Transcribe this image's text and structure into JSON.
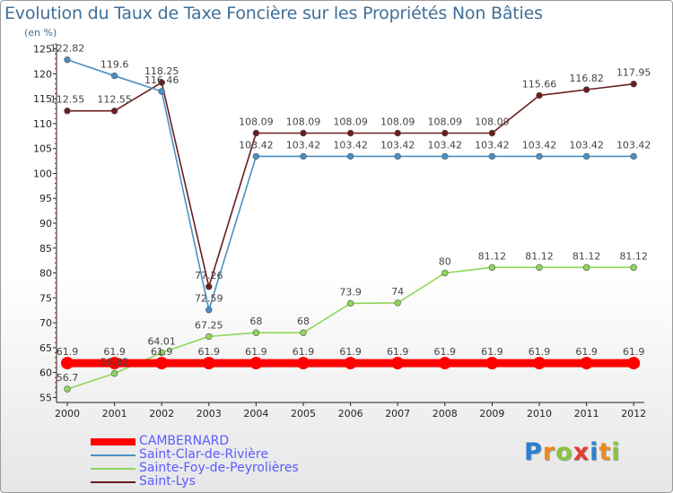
{
  "chart_data": {
    "type": "line",
    "title": "Evolution du Taux de Taxe Foncière sur les Propriétés Non Bâties",
    "subtitle": "(en %)",
    "x": [
      "2000",
      "2001",
      "2002",
      "2003",
      "2004",
      "2005",
      "2006",
      "2007",
      "2008",
      "2009",
      "2010",
      "2011",
      "2012"
    ],
    "ylim": [
      54,
      126
    ],
    "yticks": [
      55,
      60,
      65,
      70,
      75,
      80,
      85,
      90,
      95,
      100,
      105,
      110,
      115,
      120,
      125
    ],
    "series": [
      {
        "name": "CAMBERNARD",
        "color": "#ff0000",
        "values": [
          61.9,
          61.9,
          61.9,
          61.9,
          61.9,
          61.9,
          61.9,
          61.9,
          61.9,
          61.9,
          61.9,
          61.9,
          61.9
        ],
        "labels": [
          "61.9",
          "61.9",
          "61.9",
          "61.9",
          "61.9",
          "61.9",
          "61.9",
          "61.9",
          "61.9",
          "61.9",
          "61.9",
          "61.9",
          "61.9"
        ]
      },
      {
        "name": "Saint-Clar-de-Rivière",
        "color": "#4a90c6",
        "values": [
          122.82,
          119.6,
          116.46,
          72.59,
          103.42,
          103.42,
          103.42,
          103.42,
          103.42,
          103.42,
          103.42,
          103.42,
          103.42
        ],
        "labels": [
          "122.82",
          "119.6",
          "116.46",
          "72.59",
          "103.42",
          "103.42",
          "103.42",
          "103.42",
          "103.42",
          "103.42",
          "103.42",
          "103.42",
          "103.42"
        ]
      },
      {
        "name": "Sainte-Foy-de-Peyrolières",
        "color": "#8ed65a",
        "values": [
          56.7,
          59.82,
          64.01,
          67.25,
          68,
          68,
          73.9,
          74,
          80,
          81.12,
          81.12,
          81.12,
          81.12
        ],
        "labels": [
          "56.7",
          "59.82",
          "64.01",
          "67.25",
          "68",
          "68",
          "73.9",
          "74",
          "80",
          "81.12",
          "81.12",
          "81.12",
          "81.12"
        ]
      },
      {
        "name": "Saint-Lys",
        "color": "#6b1d1d",
        "values": [
          112.55,
          112.55,
          118.25,
          77.26,
          108.09,
          108.09,
          108.09,
          108.09,
          108.09,
          108.09,
          115.66,
          116.82,
          117.95
        ],
        "labels": [
          "112.55",
          "112.55",
          "118.25",
          "77.26",
          "108.09",
          "108.09",
          "108.09",
          "108.09",
          "108.09",
          "108.09",
          "115.66",
          "116.82",
          "117.95"
        ]
      }
    ],
    "legend_position": "bottom-left",
    "grid": false
  },
  "brand": {
    "letters": [
      "P",
      "r",
      "o",
      "x",
      "i",
      "t",
      "i"
    ],
    "colors": [
      "#2d7fd0",
      "#f08a1c",
      "#8ac43f",
      "#e03c31",
      "#2d7fd0",
      "#f08a1c",
      "#8ac43f"
    ]
  }
}
